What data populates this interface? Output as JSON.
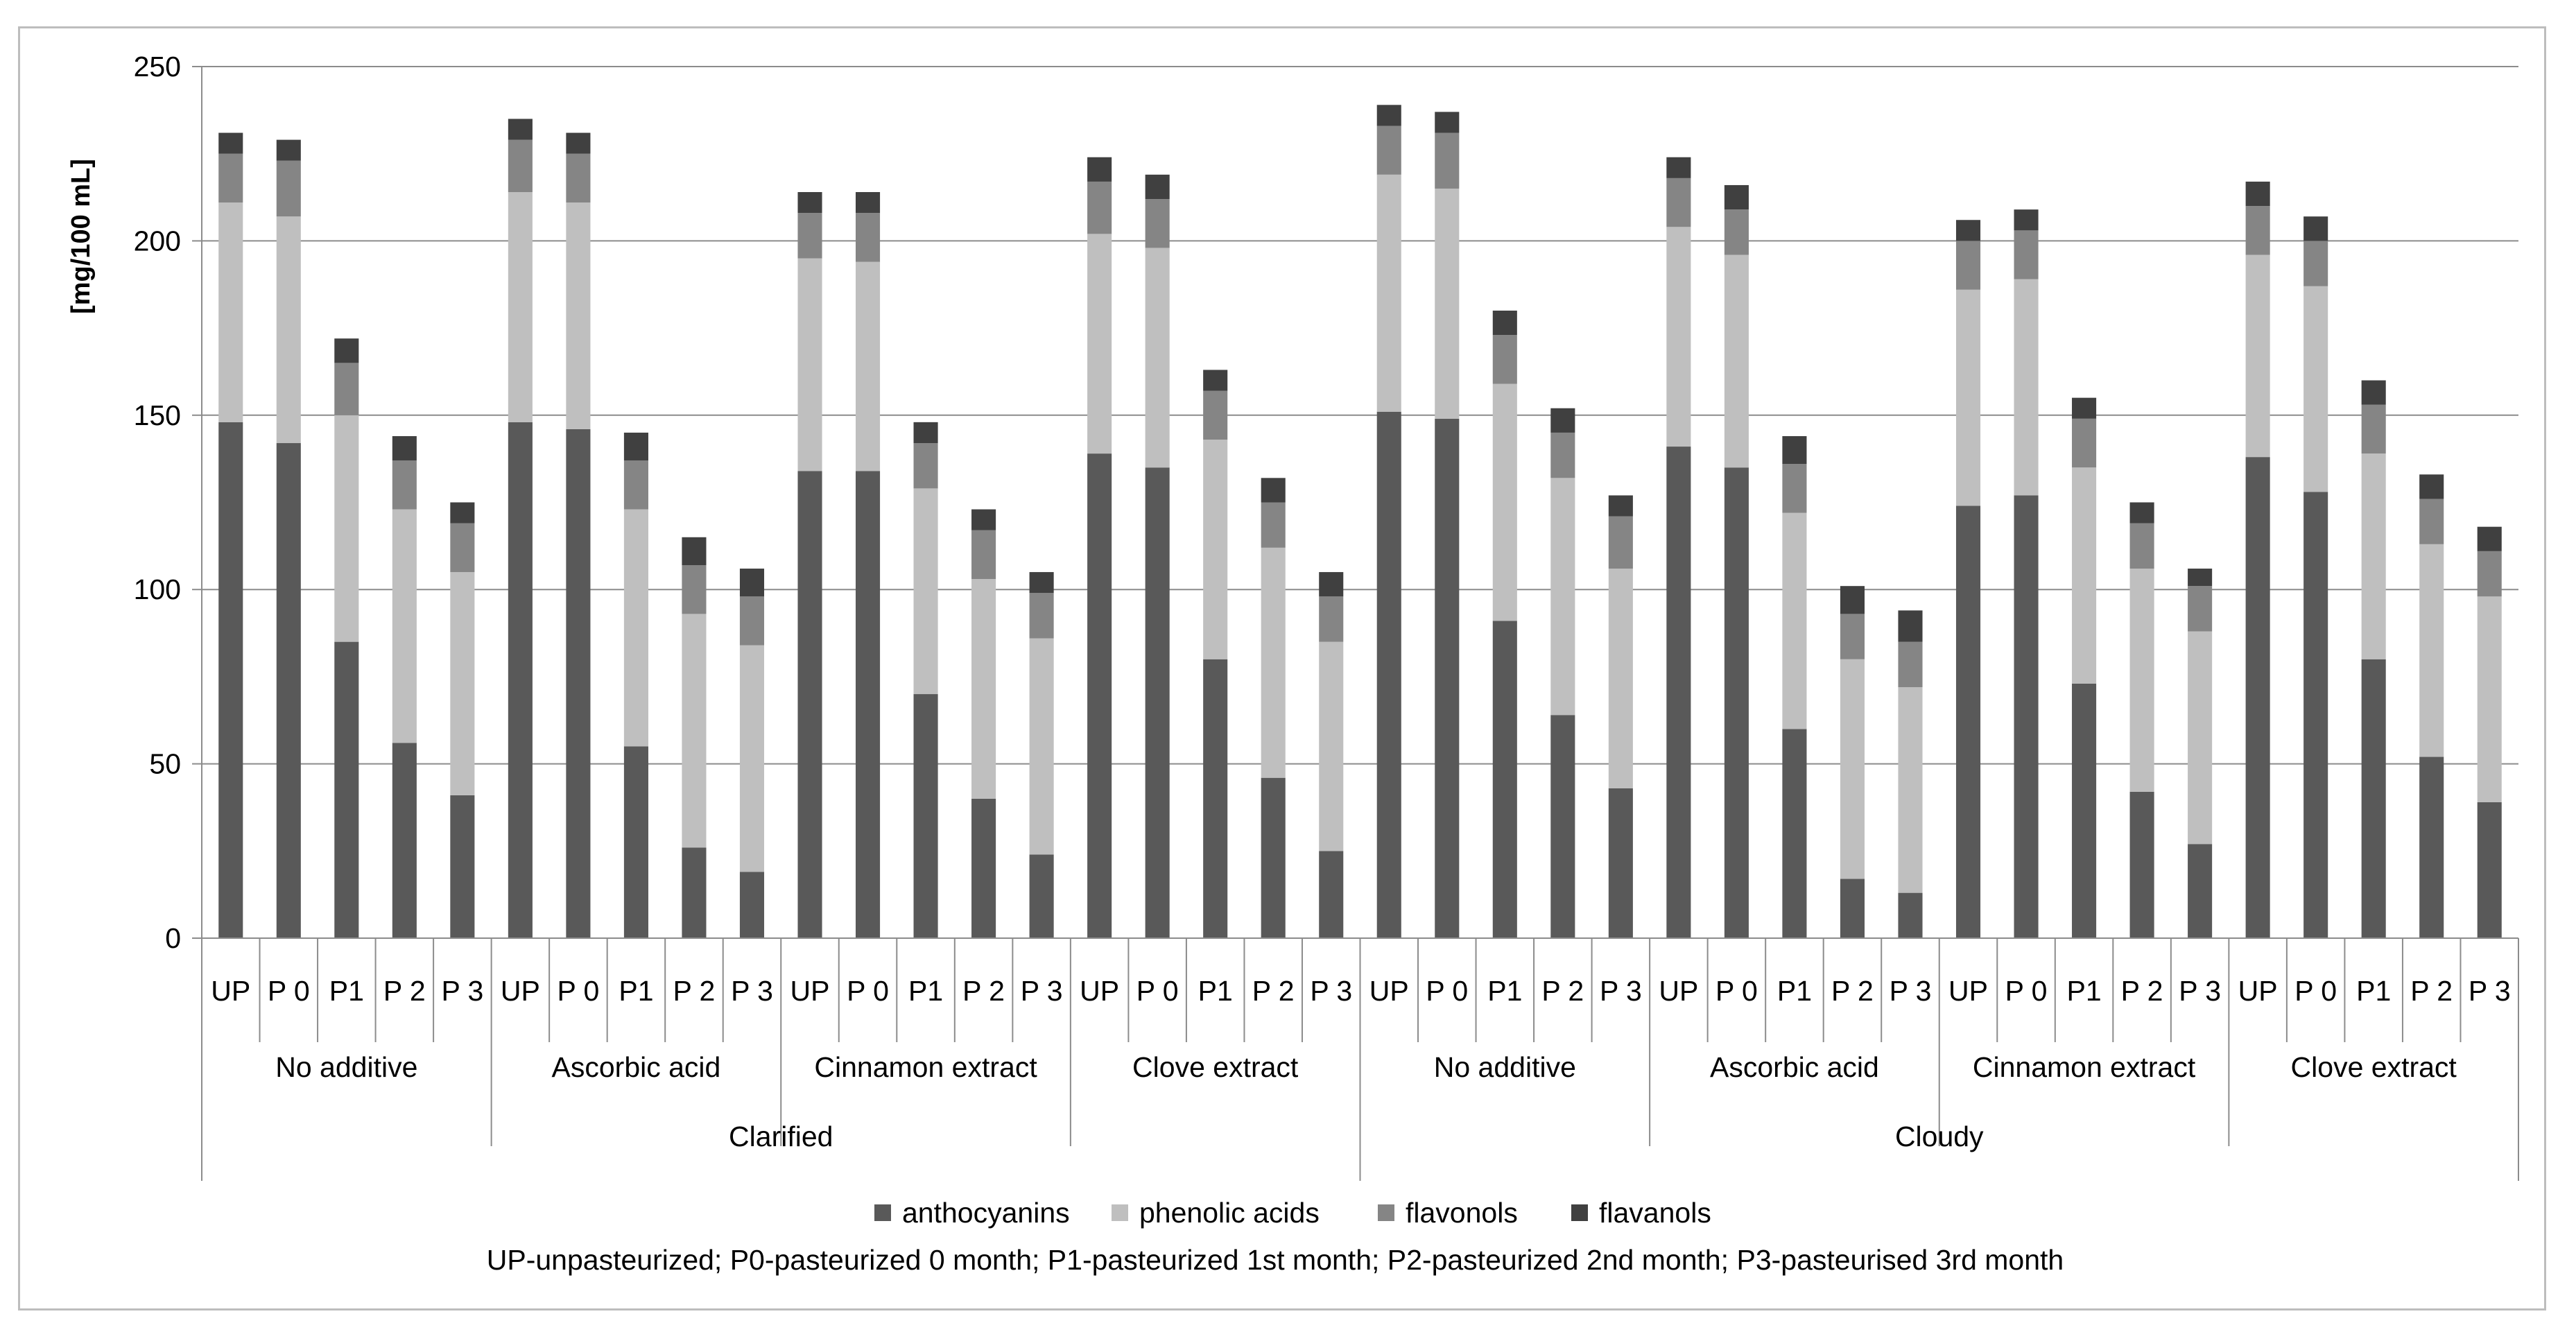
{
  "chart_data": {
    "type": "bar",
    "stacked": true,
    "ylabel": "[mg/100 mL]",
    "ylim": [
      0,
      250
    ],
    "yticks": [
      "0",
      "50",
      "100",
      "150",
      "200",
      "250"
    ],
    "grid": true,
    "legend_position": "bottom",
    "footnote": "UP-unpasteurized; P0-pasteurized 0 month;  P1-pasteurized 1st month;  P2-pasteurized 2nd month;  P3-pasteurised 3rd month",
    "categories": [
      "UP",
      "P 0",
      "P1",
      "P 2",
      "P 3",
      "UP",
      "P 0",
      "P1",
      "P 2",
      "P 3",
      "UP",
      "P 0",
      "P1",
      "P 2",
      "P 3",
      "UP",
      "P 0",
      "P1",
      "P 2",
      "P 3",
      "UP",
      "P 0",
      "P1",
      "P 2",
      "P 3",
      "UP",
      "P 0",
      "P1",
      "P 2",
      "P 3",
      "UP",
      "P 0",
      "P1",
      "P 2",
      "P 3",
      "UP",
      "P 0",
      "P1",
      "P 2",
      "P 3"
    ],
    "groups": [
      {
        "label": "No additive",
        "start": 0,
        "count": 5
      },
      {
        "label": "Ascorbic acid",
        "start": 5,
        "count": 5
      },
      {
        "label": "Cinnamon extract",
        "start": 10,
        "count": 5
      },
      {
        "label": "Clove extract",
        "start": 15,
        "count": 5
      },
      {
        "label": "No additive",
        "start": 20,
        "count": 5
      },
      {
        "label": "Ascorbic acid",
        "start": 25,
        "count": 5
      },
      {
        "label": "Cinnamon extract",
        "start": 30,
        "count": 5
      },
      {
        "label": "Clove extract",
        "start": 35,
        "count": 5
      }
    ],
    "supergroups": [
      {
        "label": "Clarified",
        "start": 0,
        "count": 20
      },
      {
        "label": "Cloudy",
        "start": 20,
        "count": 20
      }
    ],
    "series": [
      {
        "name": "anthocyanins",
        "color": "#595959",
        "values": [
          148,
          142,
          85,
          56,
          41,
          148,
          146,
          55,
          26,
          19,
          134,
          134,
          70,
          40,
          24,
          139,
          135,
          80,
          46,
          25,
          151,
          149,
          91,
          64,
          43,
          141,
          135,
          60,
          17,
          13,
          124,
          127,
          73,
          42,
          27,
          138,
          128,
          80,
          52,
          39
        ]
      },
      {
        "name": "phenolic acids",
        "color": "#bfbfbf",
        "values": [
          63,
          65,
          65,
          67,
          64,
          66,
          65,
          68,
          67,
          65,
          61,
          60,
          59,
          63,
          62,
          63,
          63,
          63,
          66,
          60,
          68,
          66,
          68,
          68,
          63,
          63,
          61,
          62,
          63,
          59,
          62,
          62,
          62,
          64,
          61,
          58,
          59,
          59,
          61,
          59
        ]
      },
      {
        "name": "flavonols",
        "color": "#858585",
        "values": [
          14,
          16,
          15,
          14,
          14,
          15,
          14,
          14,
          14,
          14,
          13,
          14,
          13,
          14,
          13,
          15,
          14,
          14,
          13,
          13,
          14,
          16,
          14,
          13,
          15,
          14,
          13,
          14,
          13,
          13,
          14,
          14,
          14,
          13,
          13,
          14,
          13,
          14,
          13,
          13
        ]
      },
      {
        "name": "flavanols",
        "color": "#404040",
        "values": [
          6,
          6,
          7,
          7,
          6,
          6,
          6,
          8,
          8,
          8,
          6,
          6,
          6,
          6,
          6,
          7,
          7,
          6,
          7,
          7,
          6,
          6,
          7,
          7,
          6,
          6,
          7,
          8,
          8,
          9,
          6,
          6,
          6,
          6,
          5,
          7,
          7,
          7,
          7,
          7
        ]
      }
    ]
  }
}
